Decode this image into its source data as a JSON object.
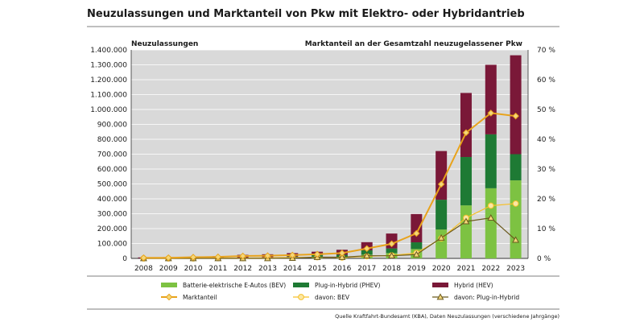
{
  "chart_data": {
    "type": "bar",
    "title": "Neuzulassungen und Marktanteil von Pkw mit Elektro- oder Hybridantrieb",
    "ylabel_left": "Neuzulassungen",
    "ylabel_right": "Marktanteil an der Gesamtzahl neuzugelassener Pkw",
    "ylim_left": [
      0,
      1400000
    ],
    "ylim_right": [
      0,
      70
    ],
    "left_ticks": [
      "0",
      "100.000",
      "200.000",
      "300.000",
      "400.000",
      "500.000",
      "600.000",
      "700.000",
      "800.000",
      "900.000",
      "1.000.000",
      "1.100.000",
      "1.200.000",
      "1.300.000",
      "1.400.000"
    ],
    "right_ticks": [
      "0 %",
      "10 %",
      "20 %",
      "30 %",
      "40 %",
      "50 %",
      "60 %",
      "70 %"
    ],
    "categories": [
      "2008",
      "2009",
      "2010",
      "2011",
      "2012",
      "2013",
      "2014",
      "2015",
      "2016",
      "2017",
      "2018",
      "2019",
      "2020",
      "2021",
      "2022",
      "2023"
    ],
    "bar_series": [
      {
        "name": "Batterie-elektrische E-Autos (BEV)",
        "color": "#7dc242",
        "values": [
          0,
          0,
          500,
          2000,
          3000,
          6000,
          8500,
          12000,
          11000,
          25000,
          36000,
          63000,
          194000,
          356000,
          471000,
          524000
        ]
      },
      {
        "name": "Plug-in-Hybrid (PHEV)",
        "color": "#1e7a34",
        "values": [
          0,
          0,
          0,
          0,
          0,
          1000,
          4500,
          11000,
          13000,
          29000,
          31000,
          45000,
          200000,
          325000,
          362000,
          176000
        ]
      },
      {
        "name": "Hybrid (HEV)",
        "color": "#7a1838",
        "values": [
          6500,
          8500,
          10500,
          12600,
          21000,
          21000,
          22500,
          22000,
          34000,
          55000,
          100000,
          190000,
          327000,
          430000,
          467000,
          664000
        ]
      }
    ],
    "line_series": [
      {
        "name": "Marktanteil",
        "color": "#e8a31c",
        "values": [
          0.2,
          0.2,
          0.4,
          0.5,
          0.8,
          0.9,
          1.1,
          1.4,
          1.8,
          3.3,
          4.9,
          8.4,
          24.9,
          42.2,
          48.8,
          47.8
        ]
      },
      {
        "name": "davon: BEV",
        "color": "#f6c02a",
        "values": [
          0,
          0,
          0,
          0.1,
          0.1,
          0.2,
          0.3,
          0.4,
          0.3,
          0.7,
          1.0,
          1.8,
          6.7,
          13.6,
          17.7,
          18.4
        ]
      },
      {
        "name": "davon: Plug-in-Hybrid",
        "color": "#6b5a1e",
        "values": [
          0,
          0,
          0,
          0,
          0,
          0,
          0.1,
          0.4,
          0.4,
          0.9,
          0.9,
          1.3,
          6.9,
          12.4,
          13.6,
          6.2
        ]
      }
    ],
    "grid": true,
    "legend_position": "bottom",
    "source": "Quelle Kraftfahrt-Bundesamt (KBA), Daten Neuzulassungen (verschiedene Jahrgänge)"
  }
}
